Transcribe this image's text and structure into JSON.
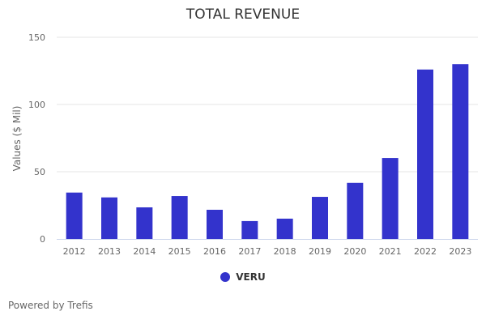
{
  "chart_data": {
    "type": "bar",
    "title": "TOTAL REVENUE",
    "xlabel": "",
    "ylabel": "Values ($ Mil)",
    "categories": [
      "2012",
      "2013",
      "2014",
      "2015",
      "2016",
      "2017",
      "2018",
      "2019",
      "2020",
      "2021",
      "2022",
      "2023"
    ],
    "series": [
      {
        "name": "VERU",
        "color": "#3333cc",
        "values": [
          34.5,
          30.9,
          23.5,
          31.9,
          21.7,
          13.3,
          15.1,
          31.3,
          41.7,
          60.2,
          126.0,
          130.0
        ]
      }
    ],
    "ylim": [
      0,
      150
    ],
    "yticks": [
      0,
      50,
      100,
      150
    ],
    "grid": true,
    "legend": "bottom-center"
  },
  "footer": "Powered by Trefis"
}
